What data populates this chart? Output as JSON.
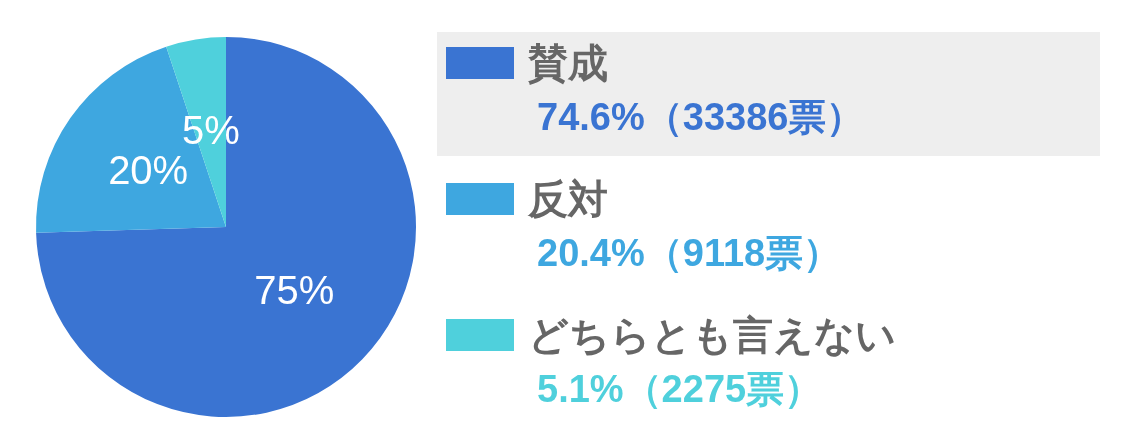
{
  "chart_data": {
    "type": "pie",
    "categories": [
      "賛成",
      "反対",
      "どちらとも言えない"
    ],
    "values": [
      74.6,
      20.4,
      5.1
    ],
    "colors": [
      "#3a74d2",
      "#3ea7e0",
      "#4fd0dc"
    ],
    "value_labels": [
      "75%",
      "20%",
      "5%"
    ],
    "annotations": [
      "74.6%（33386票）",
      "20.4%（9118票）",
      "5.1%（2275票）"
    ],
    "legend": "right"
  }
}
